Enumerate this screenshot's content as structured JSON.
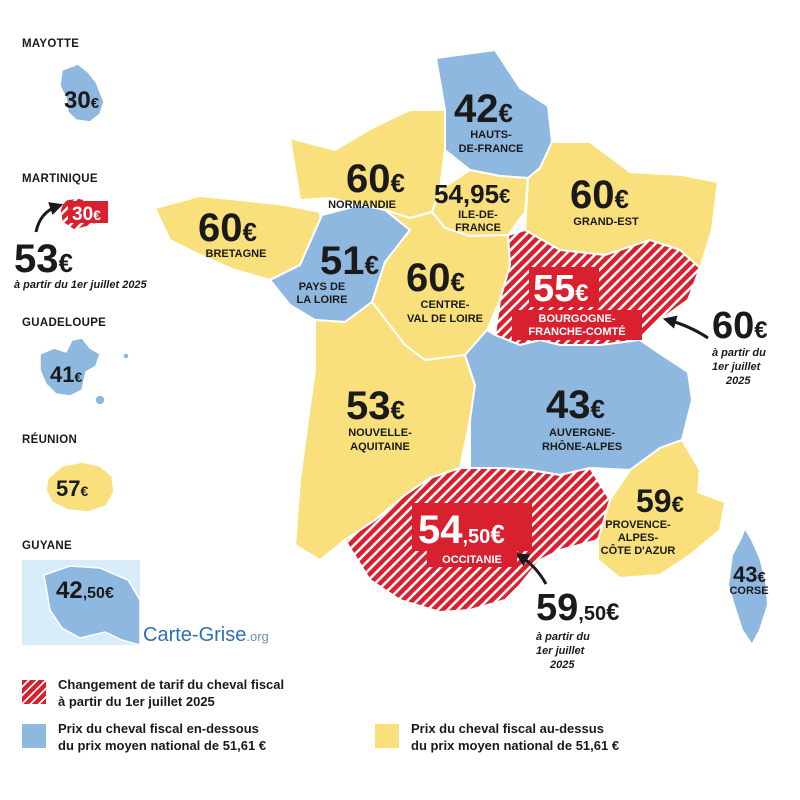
{
  "overseas": {
    "mayotte": {
      "label": "MAYOTTE",
      "price": "30",
      "currency": "€"
    },
    "martinique": {
      "label": "MARTINIQUE",
      "price": "30",
      "currency": "€",
      "future_price": "53",
      "future_currency": "€",
      "future_note": "à partir du 1er juillet 2025"
    },
    "guadeloupe": {
      "label": "GUADELOUPE",
      "price": "41",
      "currency": "€"
    },
    "reunion": {
      "label": "RÉUNION",
      "price": "57",
      "currency": "€"
    },
    "guyane": {
      "label": "GUYANE",
      "price": "42",
      "decimal": ",50",
      "currency": "€"
    }
  },
  "regions": {
    "hauts_de_france": {
      "price": "42",
      "currency": "€",
      "name": [
        "HAUTS-",
        "DE-FRANCE"
      ]
    },
    "normandie": {
      "price": "60",
      "currency": "€",
      "name": [
        "NORMANDIE"
      ]
    },
    "ile_de_france": {
      "price": "54,95",
      "currency": "€",
      "name": [
        "ILE-DE-",
        "FRANCE"
      ]
    },
    "grand_est": {
      "price": "60",
      "currency": "€",
      "name": [
        "GRAND-EST"
      ]
    },
    "bretagne": {
      "price": "60",
      "currency": "€",
      "name": [
        "BRETAGNE"
      ]
    },
    "pays_de_la_loire": {
      "price": "51",
      "currency": "€",
      "name": [
        "PAYS DE",
        "LA LOIRE"
      ]
    },
    "centre_val_de_loire": {
      "price": "60",
      "currency": "€",
      "name": [
        "CENTRE-",
        "VAL DE LOIRE"
      ]
    },
    "bourgogne_franche_comte": {
      "price": "55",
      "currency": "€",
      "name": [
        "BOURGOGNE-",
        "FRANCHE-COMTÉ"
      ],
      "future_price": "60",
      "future_currency": "€",
      "future_note": [
        "à partir du",
        "1er juillet",
        "2025"
      ]
    },
    "nouvelle_aquitaine": {
      "price": "53",
      "currency": "€",
      "name": [
        "NOUVELLE-",
        "AQUITAINE"
      ]
    },
    "auvergne_rhone_alpes": {
      "price": "43",
      "currency": "€",
      "name": [
        "AUVERGNE-",
        "RHÔNE-ALPES"
      ]
    },
    "occitanie": {
      "price": "54",
      "decimal": ",50",
      "currency": "€",
      "name": [
        "OCCITANIE"
      ],
      "future_price": "59",
      "future_decimal": ",50",
      "future_currency": "€",
      "future_note": [
        "à partir du",
        "1er juillet",
        "2025"
      ]
    },
    "provence_alpes_cote_d_azur": {
      "price": "59",
      "currency": "€",
      "name": [
        "PROVENCE-",
        "ALPES-",
        "CÔTE D'AZUR"
      ]
    },
    "corse": {
      "price": "43",
      "currency": "€",
      "name": [
        "CORSE"
      ]
    }
  },
  "brand": {
    "name": "Carte-Grise",
    "suffix": ".org"
  },
  "legend": {
    "change": [
      "Changement de tarif du cheval fiscal",
      "à partir du 1er juillet 2025"
    ],
    "below": [
      "Prix du cheval fiscal en-dessous",
      "du prix moyen national de 51,61 €"
    ],
    "above": [
      "Prix du cheval fiscal au-dessus",
      "du prix moyen national de 51,61 €"
    ]
  },
  "colors": {
    "blue": "#8fb8e0",
    "yellow": "#f9e07d",
    "red": "#d8202f",
    "text": "#1a1a1a"
  }
}
